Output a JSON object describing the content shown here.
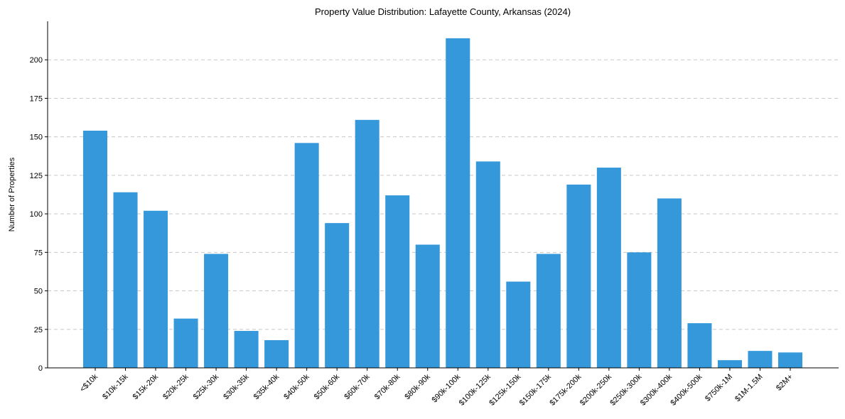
{
  "chart_data": {
    "type": "bar",
    "title": "Property Value Distribution: Lafayette County, Arkansas (2024)",
    "xlabel": "",
    "ylabel": "Number of Properties",
    "ylim": [
      0,
      225
    ],
    "yticks": [
      0,
      25,
      50,
      75,
      100,
      125,
      150,
      175,
      200
    ],
    "grid": "y-dashed",
    "bar_color": "#3498db",
    "categories": [
      "<$10k",
      "$10k-15k",
      "$15k-20k",
      "$20k-25k",
      "$25k-30k",
      "$30k-35k",
      "$35k-40k",
      "$40k-50k",
      "$50k-60k",
      "$60k-70k",
      "$70k-80k",
      "$80k-90k",
      "$90k-100k",
      "$100k-125k",
      "$125k-150k",
      "$150k-175k",
      "$175k-200k",
      "$200k-250k",
      "$250k-300k",
      "$300k-400k",
      "$400k-500k",
      "$750k-1M",
      "$1M-1.5M",
      "$2M+"
    ],
    "values": [
      154,
      114,
      102,
      32,
      74,
      24,
      18,
      146,
      94,
      161,
      112,
      80,
      214,
      134,
      56,
      74,
      119,
      130,
      75,
      110,
      29,
      5,
      11,
      10
    ]
  }
}
